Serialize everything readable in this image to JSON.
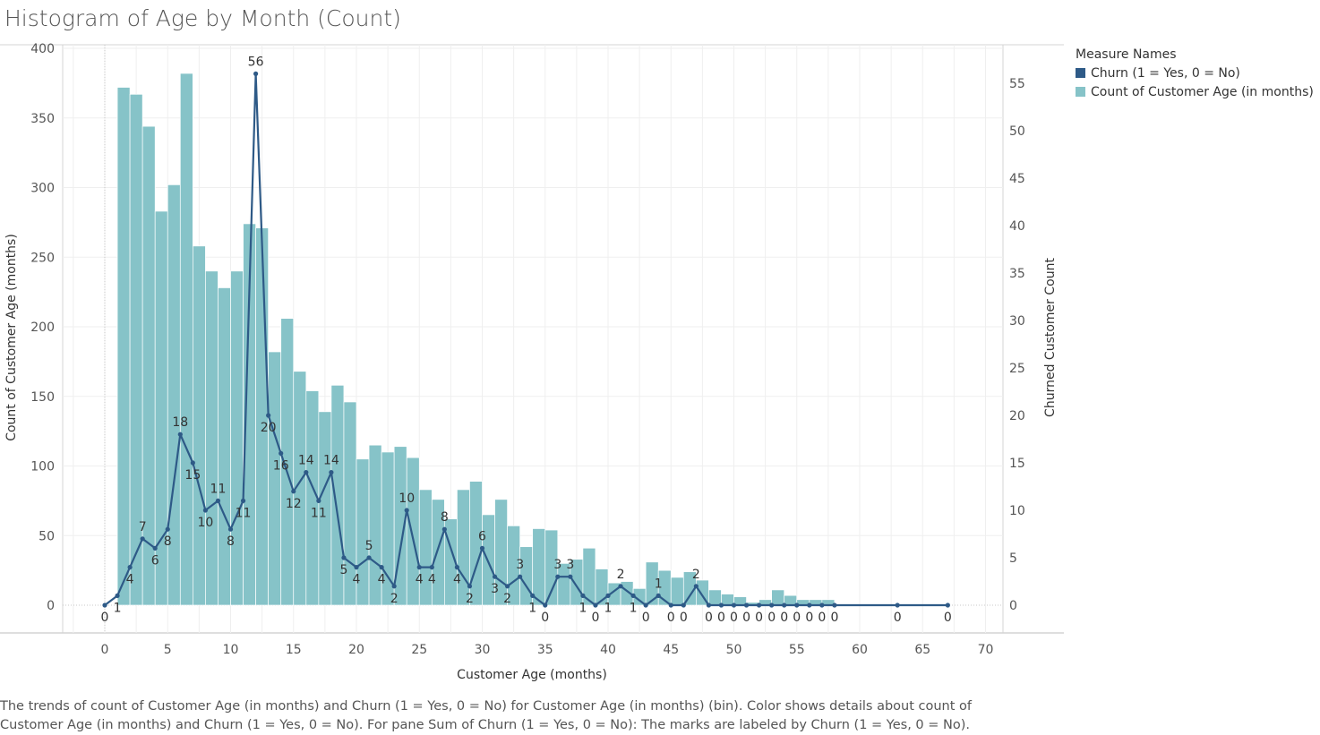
{
  "title": "Histogram of Age by Month (Count)",
  "legend": {
    "title": "Measure Names",
    "items": [
      {
        "label": "Churn (1 = Yes, 0 = No)",
        "color": "#2e5a87"
      },
      {
        "label": "Count of Customer Age (in months)",
        "color": "#86c3c8"
      }
    ]
  },
  "caption": "The trends of count of Customer Age (in months) and Churn (1 = Yes, 0 = No) for Customer Age (in months) (bin).  Color shows details about count of Customer Age (in months) and Churn (1 = Yes, 0 = No).  For pane Sum of Churn (1 = Yes, 0 = No):  The marks are labeled by Churn (1 = Yes, 0 = No).",
  "chart_data": {
    "type": "bar+line",
    "xlabel": "Customer Age (months)",
    "ylabel_left": "Count of Customer Age (months)",
    "ylabel_right": "Churned Customer Count",
    "xlim": [
      -3.5,
      71.5
    ],
    "ylim_left": [
      -20,
      400
    ],
    "ylim_right": [
      -3,
      55
    ],
    "x_ticks": [
      0,
      5,
      10,
      15,
      20,
      25,
      30,
      35,
      40,
      45,
      50,
      55,
      60,
      65,
      70
    ],
    "y_left_ticks": [
      0,
      50,
      100,
      150,
      200,
      250,
      300,
      350,
      400
    ],
    "y_right_ticks": [
      0,
      5,
      10,
      15,
      20,
      25,
      30,
      35,
      40,
      45,
      50,
      55
    ],
    "grid": true,
    "bars": {
      "name": "Count of Customer Age (in months)",
      "color": "#86c3c8",
      "x": [
        1,
        2,
        3,
        4,
        5,
        6,
        7,
        8,
        9,
        10,
        11,
        12,
        13,
        14,
        15,
        16,
        17,
        18,
        19,
        20,
        21,
        22,
        23,
        24,
        25,
        26,
        27,
        28,
        29,
        30,
        31,
        32,
        33,
        34,
        35,
        36,
        37,
        38,
        39,
        40,
        41,
        42,
        43,
        44,
        45,
        46,
        47,
        48,
        49,
        50,
        51,
        52,
        53,
        54,
        55,
        56,
        57
      ],
      "values": [
        372,
        367,
        344,
        283,
        302,
        382,
        258,
        240,
        228,
        240,
        274,
        271,
        182,
        206,
        168,
        154,
        139,
        158,
        146,
        105,
        115,
        110,
        114,
        106,
        83,
        76,
        62,
        83,
        89,
        65,
        76,
        57,
        42,
        55,
        54,
        30,
        33,
        41,
        26,
        16,
        17,
        12,
        31,
        25,
        20,
        24,
        18,
        11,
        8,
        6,
        2,
        4,
        11,
        7,
        4,
        4,
        4
      ]
    },
    "line": {
      "name": "Churn (1 = Yes, 0 = No)",
      "color": "#2e5a87",
      "x": [
        0,
        1,
        2,
        3,
        4,
        5,
        6,
        7,
        8,
        9,
        10,
        11,
        12,
        13,
        14,
        15,
        16,
        17,
        18,
        19,
        20,
        21,
        22,
        23,
        24,
        25,
        26,
        27,
        28,
        29,
        30,
        31,
        32,
        33,
        34,
        35,
        36,
        37,
        38,
        39,
        40,
        41,
        42,
        43,
        44,
        45,
        46,
        47,
        48,
        49,
        50,
        51,
        52,
        53,
        54,
        55,
        56,
        57,
        58,
        63,
        67
      ],
      "values": [
        0,
        1,
        4,
        7,
        6,
        8,
        18,
        15,
        10,
        11,
        8,
        11,
        56,
        20,
        16,
        12,
        14,
        11,
        14,
        5,
        4,
        5,
        4,
        2,
        10,
        4,
        4,
        8,
        4,
        2,
        6,
        3,
        2,
        3,
        1,
        0,
        3,
        3,
        1,
        0,
        1,
        2,
        1,
        0,
        1,
        0,
        0,
        2,
        0,
        0,
        0,
        0,
        0,
        0,
        0,
        0,
        0,
        0,
        0,
        0,
        0
      ]
    }
  }
}
